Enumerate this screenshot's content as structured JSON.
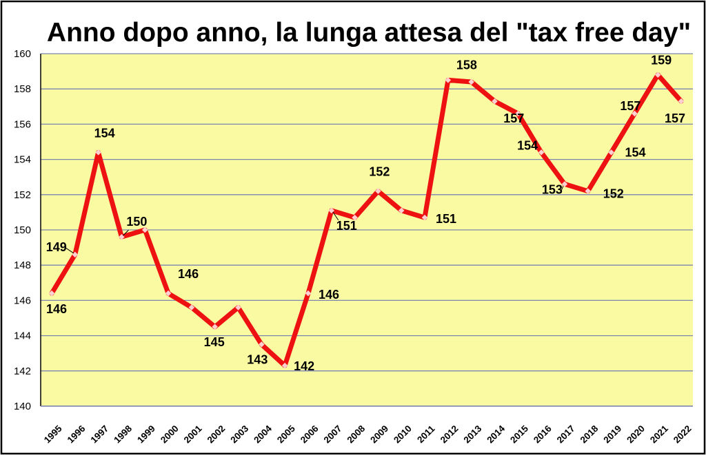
{
  "chart_data": {
    "type": "line",
    "title": "Anno dopo anno, la lunga attesa del \"tax free day\"",
    "xlabel": "",
    "ylabel": "",
    "ylim": [
      140,
      160
    ],
    "yticks": [
      140,
      142,
      144,
      146,
      148,
      150,
      152,
      154,
      156,
      158,
      160
    ],
    "grid": true,
    "legend": "none",
    "colors": {
      "line": "#ee1111",
      "marker": "#ffd0d0",
      "plot_bg": "#fafaa2",
      "grid": "#7b86b0",
      "border": "#000000"
    },
    "categories": [
      "1995",
      "1996",
      "1997",
      "1998",
      "1999",
      "2000",
      "2001",
      "2002",
      "2003",
      "2004",
      "2005",
      "2006",
      "2007",
      "2008",
      "2009",
      "2010",
      "2011",
      "2012",
      "2013",
      "2014",
      "2015",
      "2016",
      "2017",
      "2018",
      "2019",
      "2020",
      "2021",
      "2022"
    ],
    "series": [
      {
        "values": [
          146.4,
          148.6,
          154.4,
          149.6,
          150.0,
          146.4,
          145.6,
          144.5,
          145.6,
          143.5,
          142.3,
          146.4,
          151.1,
          150.7,
          152.2,
          151.1,
          150.7,
          158.5,
          158.4,
          157.3,
          156.6,
          154.4,
          152.6,
          152.2,
          154.4,
          156.6,
          158.8,
          157.3
        ],
        "data_labels": [
          "146",
          "149",
          "154",
          "150",
          "",
          "146",
          "",
          "145",
          "",
          "143",
          "142",
          "146",
          "151",
          "",
          "152",
          "",
          "151",
          "158",
          "",
          "",
          "157",
          "154",
          "153",
          "152",
          "154",
          "157",
          "159",
          "157"
        ]
      }
    ]
  }
}
